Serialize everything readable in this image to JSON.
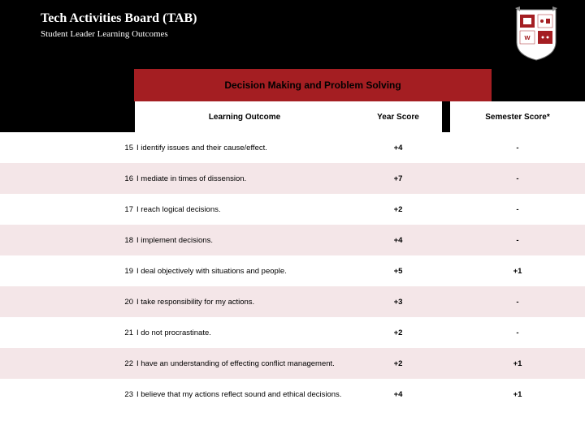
{
  "header": {
    "title": "Tech Activities Board (TAB)",
    "subtitle": "Student Leader Learning Outcomes"
  },
  "section": {
    "title": "Decision Making and Problem Solving"
  },
  "columns": {
    "outcome": "Learning Outcome",
    "year": "Year Score",
    "semester": "Semester Score*"
  },
  "rows": [
    {
      "num": "15",
      "outcome": "I identify issues and their cause/effect.",
      "year": "+4",
      "semester": "-"
    },
    {
      "num": "16",
      "outcome": "I mediate in times of dissension.",
      "year": "+7",
      "semester": "-"
    },
    {
      "num": "17",
      "outcome": "I reach logical decisions.",
      "year": "+2",
      "semester": "-"
    },
    {
      "num": "18",
      "outcome": "I implement decisions.",
      "year": "+4",
      "semester": "-"
    },
    {
      "num": "19",
      "outcome": "I deal objectively with situations and people.",
      "year": "+5",
      "semester": "+1"
    },
    {
      "num": "20",
      "outcome": "I take responsibility for my actions.",
      "year": "+3",
      "semester": "-"
    },
    {
      "num": "21",
      "outcome": "I do not procrastinate.",
      "year": "+2",
      "semester": "-"
    },
    {
      "num": "22",
      "outcome": "I have an understanding of effecting conflict management.",
      "year": "+2",
      "semester": "+1"
    },
    {
      "num": "23",
      "outcome": "I believe that my actions reflect sound and ethical decisions.",
      "year": "+4",
      "semester": "+1"
    }
  ],
  "colors": {
    "header_bg": "#000000",
    "section_bg": "#a41e22",
    "alt_row": "#f4e6e8"
  }
}
